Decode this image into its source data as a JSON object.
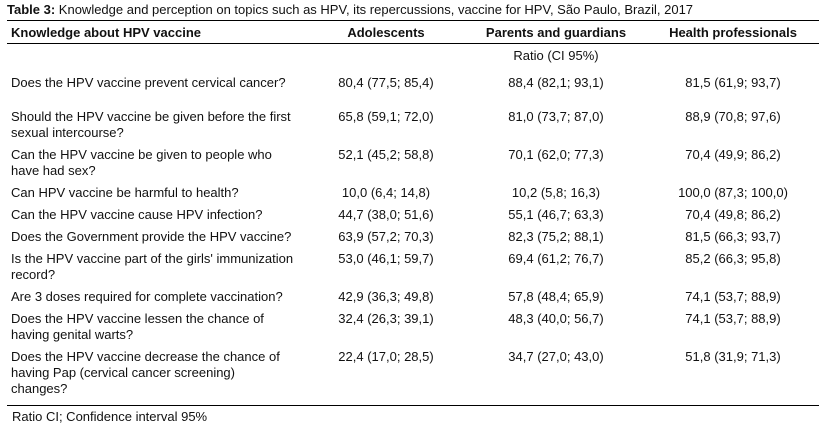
{
  "caption": {
    "label": "Table 3:",
    "text": "Knowledge and perception on topics such as HPV, its repercussions, vaccine for HPV, São Paulo, Brazil, 2017"
  },
  "columns": {
    "question": "Knowledge about HPV vaccine",
    "adolescents": "Adolescents",
    "parents": "Parents and guardians",
    "professionals": "Health professionals"
  },
  "subheader": "Ratio (CI 95%)",
  "rows": [
    {
      "question": "Does the HPV vaccine prevent cervical cancer?",
      "adolescents": "80,4 (77,5; 85,4)",
      "parents": "88,4 (82,1; 93,1)",
      "professionals": "81,5 (61,9; 93,7)"
    },
    {
      "question": "Should the HPV vaccine be given before the first sexual intercourse?",
      "adolescents": "65,8 (59,1; 72,0)",
      "parents": "81,0 (73,7; 87,0)",
      "professionals": "88,9 (70,8; 97,6)"
    },
    {
      "question": "Can the HPV vaccine be given to people who have had sex?",
      "adolescents": "52,1 (45,2; 58,8)",
      "parents": "70,1 (62,0; 77,3)",
      "professionals": "70,4 (49,9; 86,2)"
    },
    {
      "question": "Can HPV vaccine be harmful to health?",
      "adolescents": "10,0 (6,4; 14,8)",
      "parents": "10,2 (5,8; 16,3)",
      "professionals": "100,0 (87,3; 100,0)"
    },
    {
      "question": "Can the HPV vaccine cause HPV infection?",
      "adolescents": "44,7 (38,0; 51,6)",
      "parents": "55,1 (46,7; 63,3)",
      "professionals": "70,4 (49,8; 86,2)"
    },
    {
      "question": "Does the Government provide the HPV vaccine?",
      "adolescents": "63,9 (57,2; 70,3)",
      "parents": "82,3 (75,2; 88,1)",
      "professionals": "81,5 (66,3; 93,7)"
    },
    {
      "question": "Is the HPV vaccine part of the girls' immunization record?",
      "adolescents": "53,0 (46,1; 59,7)",
      "parents": "69,4 (61,2; 76,7)",
      "professionals": "85,2 (66,3; 95,8)"
    },
    {
      "question": "Are 3 doses required for complete vaccination?",
      "adolescents": "42,9 (36,3; 49,8)",
      "parents": "57,8 (48,4; 65,9)",
      "professionals": "74,1 (53,7; 88,9)"
    },
    {
      "question": "Does the HPV vaccine lessen the chance of having genital warts?",
      "adolescents": "32,4 (26,3; 39,1)",
      "parents": "48,3 (40,0; 56,7)",
      "professionals": "74,1 (53,7; 88,9)"
    },
    {
      "question": "Does the HPV vaccine decrease the chance of having Pap (cervical cancer screening) changes?",
      "adolescents": "22,4 (17,0; 28,5)",
      "parents": "34,7 (27,0; 43,0)",
      "professionals": "51,8 (31,9; 71,3)"
    }
  ],
  "footnote": "Ratio CI; Confidence interval 95%"
}
